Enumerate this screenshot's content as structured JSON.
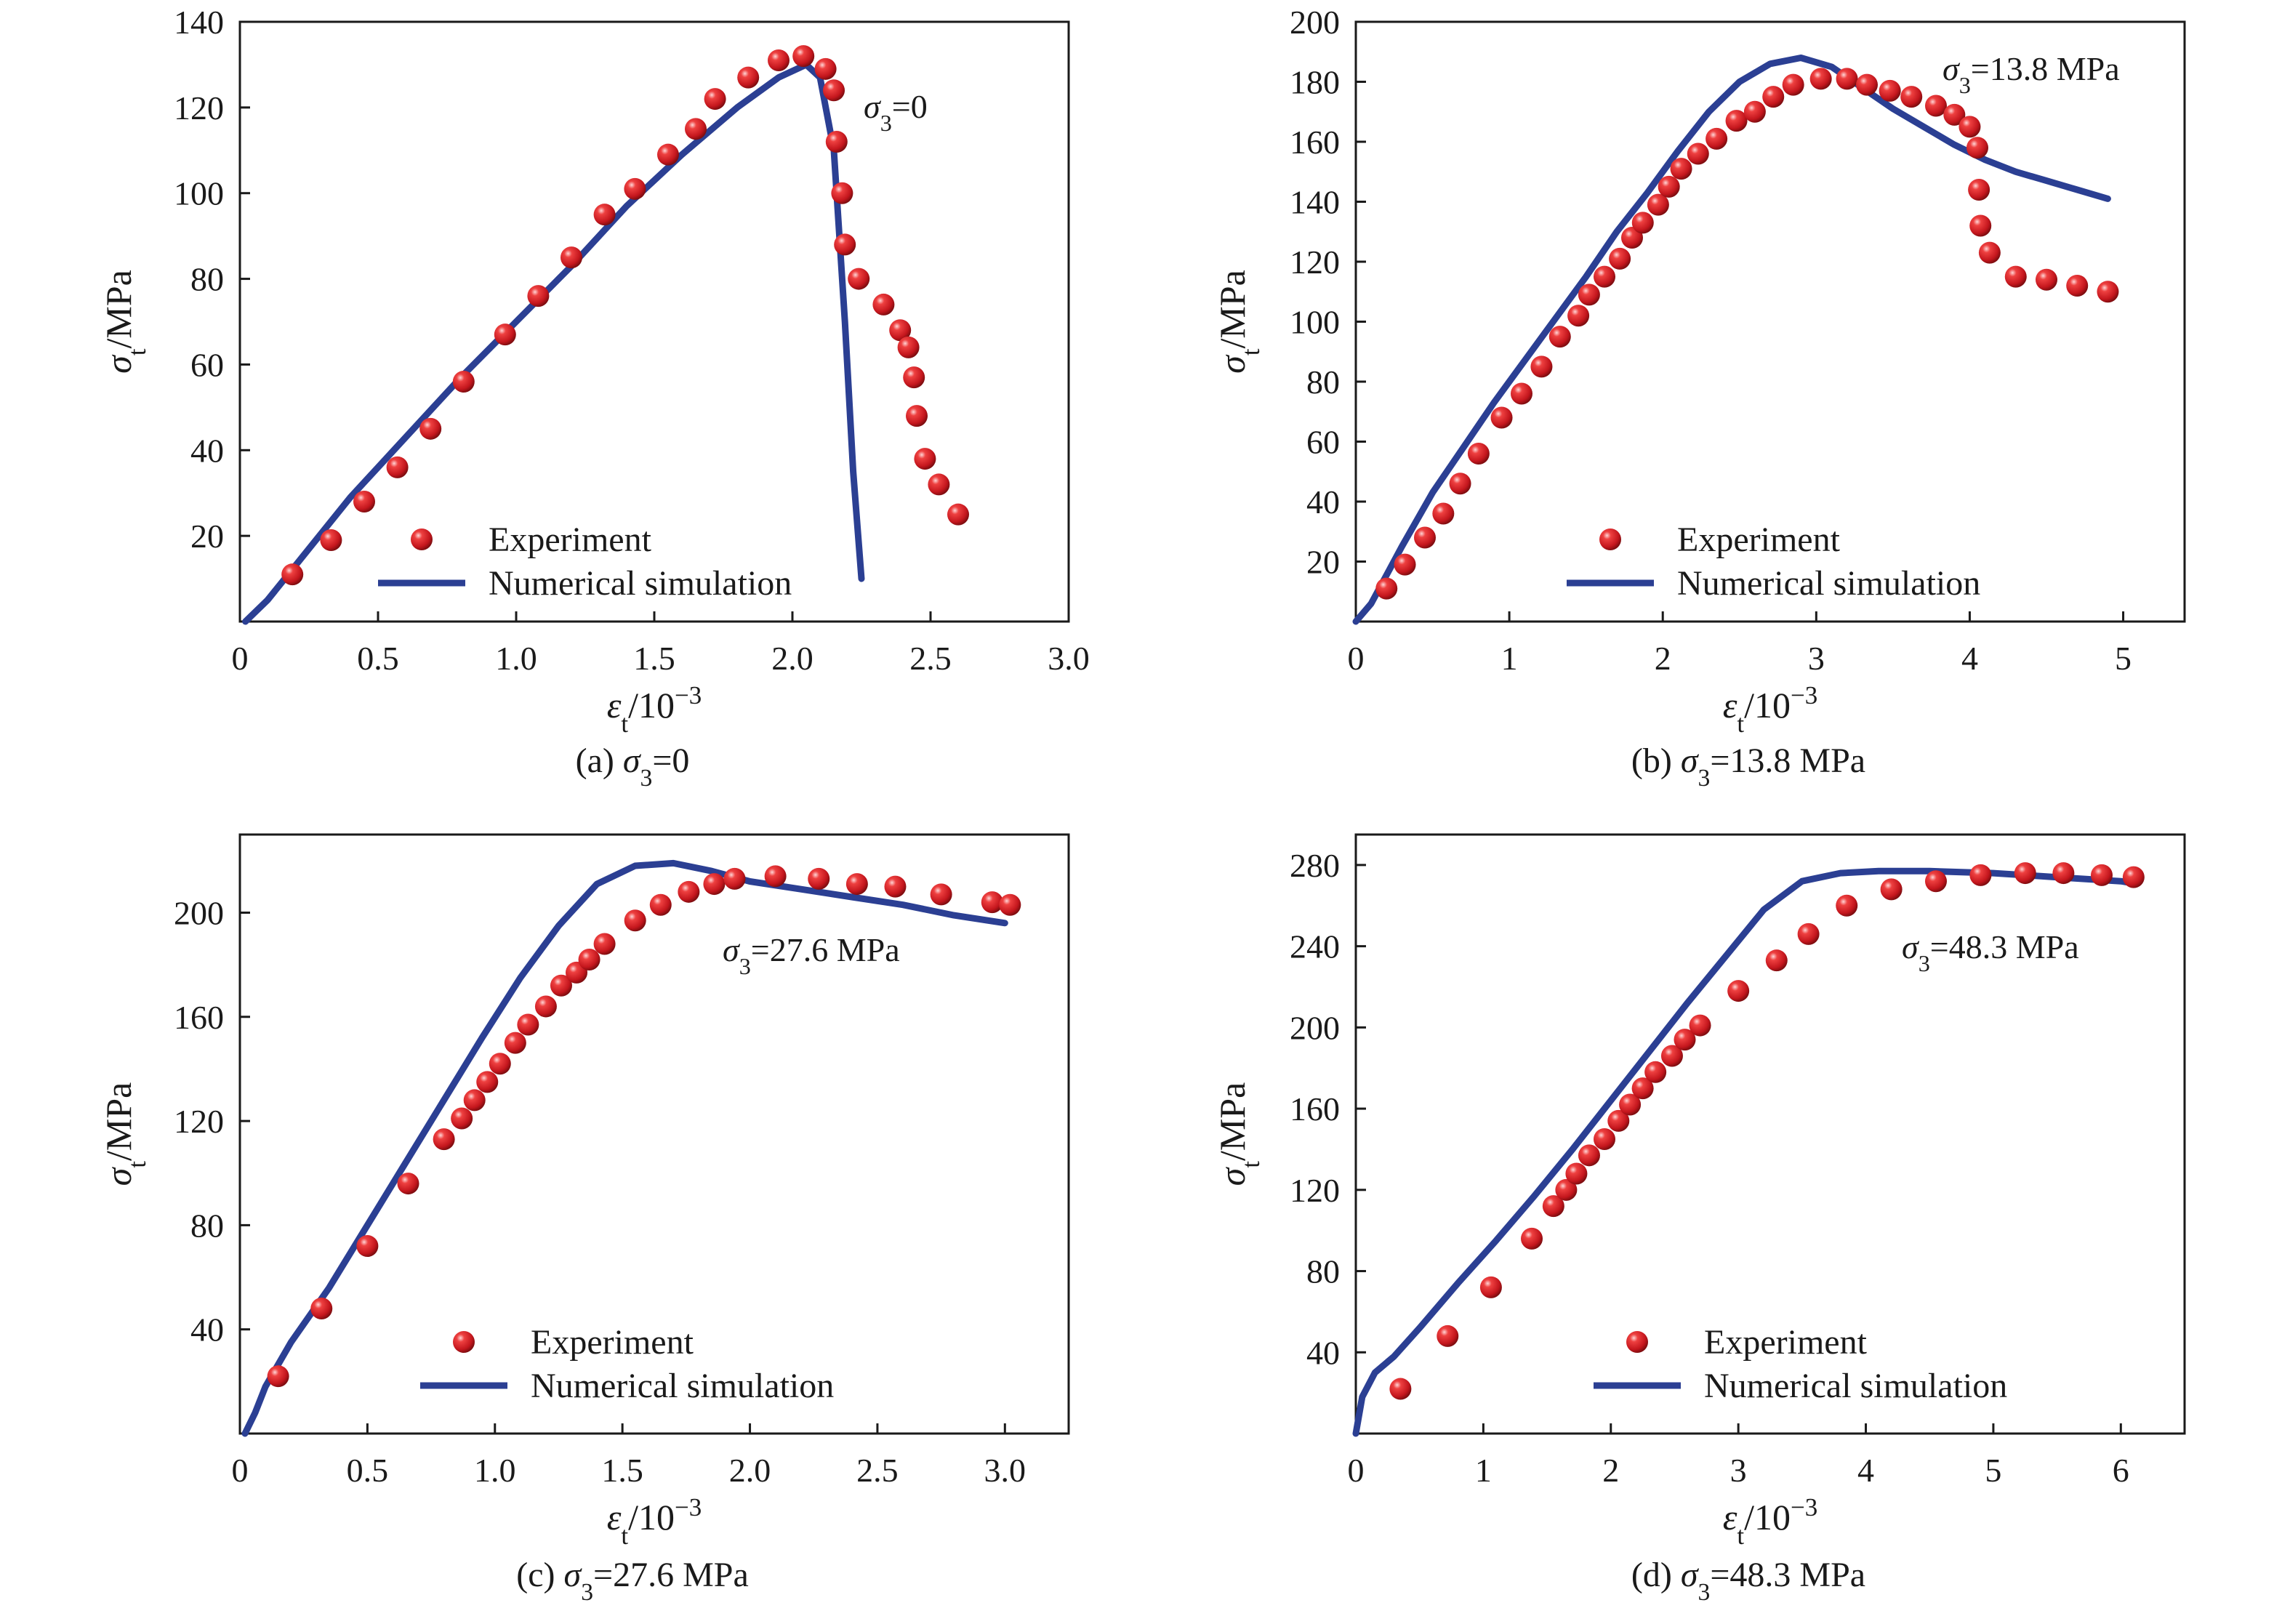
{
  "figure": {
    "legend": {
      "experiment": "Experiment",
      "simulation": "Numerical simulation"
    },
    "colors": {
      "experiment": "#d42027",
      "simulation": "#2b3f93"
    }
  },
  "chart_data": [
    {
      "type": "scatter",
      "caption": "(a) σ3=0",
      "annotation": "σ3=0",
      "xlabel": "εt/10−3",
      "ylabel": "σt/MPa",
      "xlim": [
        0,
        3.0
      ],
      "ylim": [
        0,
        140
      ],
      "xticks": [
        "0",
        "0.5",
        "1.0",
        "1.5",
        "2.0",
        "2.5",
        "3.0"
      ],
      "yticks": [
        "20",
        "40",
        "60",
        "80",
        "100",
        "120",
        "140"
      ],
      "legend_position": "bottom-center",
      "series": [
        {
          "name": "Experiment",
          "kind": "scatter",
          "points": [
            [
              0.19,
              11
            ],
            [
              0.33,
              19
            ],
            [
              0.45,
              28
            ],
            [
              0.57,
              36
            ],
            [
              0.69,
              45
            ],
            [
              0.81,
              56
            ],
            [
              0.96,
              67
            ],
            [
              1.08,
              76
            ],
            [
              1.2,
              85
            ],
            [
              1.32,
              95
            ],
            [
              1.43,
              101
            ],
            [
              1.55,
              109
            ],
            [
              1.65,
              115
            ],
            [
              1.72,
              122
            ],
            [
              1.84,
              127
            ],
            [
              1.95,
              131
            ],
            [
              2.04,
              132
            ],
            [
              2.12,
              129
            ],
            [
              2.15,
              124
            ],
            [
              2.16,
              112
            ],
            [
              2.18,
              100
            ],
            [
              2.19,
              88
            ],
            [
              2.24,
              80
            ],
            [
              2.33,
              74
            ],
            [
              2.39,
              68
            ],
            [
              2.42,
              64
            ],
            [
              2.44,
              57
            ],
            [
              2.45,
              48
            ],
            [
              2.48,
              38
            ],
            [
              2.53,
              32
            ],
            [
              2.6,
              25
            ]
          ]
        },
        {
          "name": "Numerical simulation",
          "kind": "line",
          "points": [
            [
              0.02,
              0
            ],
            [
              0.1,
              5
            ],
            [
              0.2,
              13
            ],
            [
              0.4,
              29
            ],
            [
              0.6,
              43
            ],
            [
              0.8,
              57
            ],
            [
              1.0,
              70
            ],
            [
              1.2,
              83
            ],
            [
              1.4,
              97
            ],
            [
              1.6,
              109
            ],
            [
              1.8,
              120
            ],
            [
              1.95,
              127
            ],
            [
              2.05,
              130
            ],
            [
              2.1,
              127
            ],
            [
              2.15,
              110
            ],
            [
              2.19,
              70
            ],
            [
              2.22,
              35
            ],
            [
              2.25,
              10
            ]
          ]
        }
      ]
    },
    {
      "type": "scatter",
      "caption": "(b) σ3=13.8 MPa",
      "annotation": "σ3=13.8 MPa",
      "xlabel": "εt/10−3",
      "ylabel": "σt/MPa",
      "xlim": [
        0,
        5.4
      ],
      "ylim": [
        0,
        200
      ],
      "xticks": [
        "0",
        "1",
        "2",
        "3",
        "4",
        "5"
      ],
      "yticks": [
        "20",
        "40",
        "60",
        "80",
        "100",
        "120",
        "140",
        "160",
        "180",
        "200"
      ],
      "legend_position": "bottom-center",
      "series": [
        {
          "name": "Experiment",
          "kind": "scatter",
          "points": [
            [
              0.2,
              11
            ],
            [
              0.32,
              19
            ],
            [
              0.45,
              28
            ],
            [
              0.57,
              36
            ],
            [
              0.68,
              46
            ],
            [
              0.8,
              56
            ],
            [
              0.95,
              68
            ],
            [
              1.08,
              76
            ],
            [
              1.21,
              85
            ],
            [
              1.33,
              95
            ],
            [
              1.45,
              102
            ],
            [
              1.52,
              109
            ],
            [
              1.62,
              115
            ],
            [
              1.72,
              121
            ],
            [
              1.8,
              128
            ],
            [
              1.87,
              133
            ],
            [
              1.97,
              139
            ],
            [
              2.04,
              145
            ],
            [
              2.12,
              151
            ],
            [
              2.23,
              156
            ],
            [
              2.35,
              161
            ],
            [
              2.48,
              167
            ],
            [
              2.6,
              170
            ],
            [
              2.72,
              175
            ],
            [
              2.85,
              179
            ],
            [
              3.03,
              181
            ],
            [
              3.2,
              181
            ],
            [
              3.33,
              179
            ],
            [
              3.48,
              177
            ],
            [
              3.62,
              175
            ],
            [
              3.78,
              172
            ],
            [
              3.9,
              169
            ],
            [
              4.0,
              165
            ],
            [
              4.05,
              158
            ],
            [
              4.06,
              144
            ],
            [
              4.07,
              132
            ],
            [
              4.13,
              123
            ],
            [
              4.3,
              115
            ],
            [
              4.5,
              114
            ],
            [
              4.7,
              112
            ],
            [
              4.9,
              110
            ]
          ]
        },
        {
          "name": "Numerical simulation",
          "kind": "line",
          "points": [
            [
              0.0,
              0
            ],
            [
              0.1,
              6
            ],
            [
              0.3,
              25
            ],
            [
              0.5,
              43
            ],
            [
              0.7,
              58
            ],
            [
              0.9,
              73
            ],
            [
              1.1,
              87
            ],
            [
              1.3,
              101
            ],
            [
              1.5,
              115
            ],
            [
              1.7,
              130
            ],
            [
              1.9,
              143
            ],
            [
              2.1,
              157
            ],
            [
              2.3,
              170
            ],
            [
              2.5,
              180
            ],
            [
              2.7,
              186
            ],
            [
              2.9,
              188
            ],
            [
              3.1,
              185
            ],
            [
              3.3,
              178
            ],
            [
              3.5,
              171
            ],
            [
              3.7,
              165
            ],
            [
              3.9,
              159
            ],
            [
              4.1,
              154
            ],
            [
              4.3,
              150
            ],
            [
              4.5,
              147
            ],
            [
              4.7,
              144
            ],
            [
              4.9,
              141
            ]
          ]
        }
      ]
    },
    {
      "type": "scatter",
      "caption": "(c) σ3=27.6 MPa",
      "annotation": "σ3=27.6 MPa",
      "xlabel": "εt/10−3",
      "ylabel": "σt/MPa",
      "xlim": [
        0,
        3.25
      ],
      "ylim": [
        0,
        230
      ],
      "xticks": [
        "0",
        "0.5",
        "1.0",
        "1.5",
        "2.0",
        "2.5",
        "3.0"
      ],
      "yticks": [
        "40",
        "80",
        "120",
        "160",
        "200"
      ],
      "legend_position": "bottom-center",
      "series": [
        {
          "name": "Experiment",
          "kind": "scatter",
          "points": [
            [
              0.15,
              22
            ],
            [
              0.32,
              48
            ],
            [
              0.5,
              72
            ],
            [
              0.66,
              96
            ],
            [
              0.8,
              113
            ],
            [
              0.87,
              121
            ],
            [
              0.92,
              128
            ],
            [
              0.97,
              135
            ],
            [
              1.02,
              142
            ],
            [
              1.08,
              150
            ],
            [
              1.13,
              157
            ],
            [
              1.2,
              164
            ],
            [
              1.26,
              172
            ],
            [
              1.32,
              177
            ],
            [
              1.37,
              182
            ],
            [
              1.43,
              188
            ],
            [
              1.55,
              197
            ],
            [
              1.65,
              203
            ],
            [
              1.76,
              208
            ],
            [
              1.86,
              211
            ],
            [
              1.94,
              213
            ],
            [
              2.1,
              214
            ],
            [
              2.27,
              213
            ],
            [
              2.42,
              211
            ],
            [
              2.57,
              210
            ],
            [
              2.75,
              207
            ],
            [
              2.95,
              204
            ],
            [
              3.02,
              203
            ]
          ]
        },
        {
          "name": "Numerical simulation",
          "kind": "line",
          "points": [
            [
              0.02,
              0
            ],
            [
              0.06,
              8
            ],
            [
              0.1,
              18
            ],
            [
              0.2,
              35
            ],
            [
              0.35,
              56
            ],
            [
              0.5,
              80
            ],
            [
              0.65,
              104
            ],
            [
              0.8,
              128
            ],
            [
              0.95,
              152
            ],
            [
              1.1,
              175
            ],
            [
              1.25,
              195
            ],
            [
              1.4,
              211
            ],
            [
              1.55,
              218
            ],
            [
              1.7,
              219
            ],
            [
              1.85,
              216
            ],
            [
              2.0,
              212
            ],
            [
              2.2,
              209
            ],
            [
              2.4,
              206
            ],
            [
              2.6,
              203
            ],
            [
              2.8,
              199
            ],
            [
              3.0,
              196
            ]
          ]
        }
      ]
    },
    {
      "type": "scatter",
      "caption": "(d) σ3=48.3 MPa",
      "annotation": "σ3=48.3 MPa",
      "xlabel": "εt/10−3",
      "ylabel": "σt/MPa",
      "xlim": [
        0,
        6.5
      ],
      "ylim": [
        0,
        295
      ],
      "xticks": [
        "0",
        "1",
        "2",
        "3",
        "4",
        "5",
        "6"
      ],
      "yticks": [
        "40",
        "80",
        "120",
        "160",
        "200",
        "240",
        "280"
      ],
      "legend_position": "bottom-center",
      "series": [
        {
          "name": "Experiment",
          "kind": "scatter",
          "points": [
            [
              0.35,
              22
            ],
            [
              0.72,
              48
            ],
            [
              1.06,
              72
            ],
            [
              1.38,
              96
            ],
            [
              1.55,
              112
            ],
            [
              1.65,
              120
            ],
            [
              1.73,
              128
            ],
            [
              1.83,
              137
            ],
            [
              1.95,
              145
            ],
            [
              2.06,
              154
            ],
            [
              2.15,
              162
            ],
            [
              2.25,
              170
            ],
            [
              2.35,
              178
            ],
            [
              2.48,
              186
            ],
            [
              2.58,
              194
            ],
            [
              2.7,
              201
            ],
            [
              3.0,
              218
            ],
            [
              3.3,
              233
            ],
            [
              3.55,
              246
            ],
            [
              3.85,
              260
            ],
            [
              4.2,
              268
            ],
            [
              4.55,
              272
            ],
            [
              4.9,
              275
            ],
            [
              5.25,
              276
            ],
            [
              5.55,
              276
            ],
            [
              5.85,
              275
            ],
            [
              6.1,
              274
            ]
          ]
        },
        {
          "name": "Numerical simulation",
          "kind": "line",
          "points": [
            [
              0.0,
              0
            ],
            [
              0.05,
              18
            ],
            [
              0.15,
              30
            ],
            [
              0.3,
              38
            ],
            [
              0.5,
              52
            ],
            [
              0.8,
              74
            ],
            [
              1.1,
              95
            ],
            [
              1.4,
              117
            ],
            [
              1.7,
              140
            ],
            [
              2.0,
              164
            ],
            [
              2.3,
              188
            ],
            [
              2.6,
              212
            ],
            [
              2.9,
              235
            ],
            [
              3.2,
              258
            ],
            [
              3.5,
              272
            ],
            [
              3.8,
              276
            ],
            [
              4.1,
              277
            ],
            [
              4.5,
              277
            ],
            [
              5.0,
              276
            ],
            [
              5.5,
              274
            ],
            [
              6.0,
              272
            ],
            [
              6.1,
              271
            ]
          ]
        }
      ]
    }
  ]
}
